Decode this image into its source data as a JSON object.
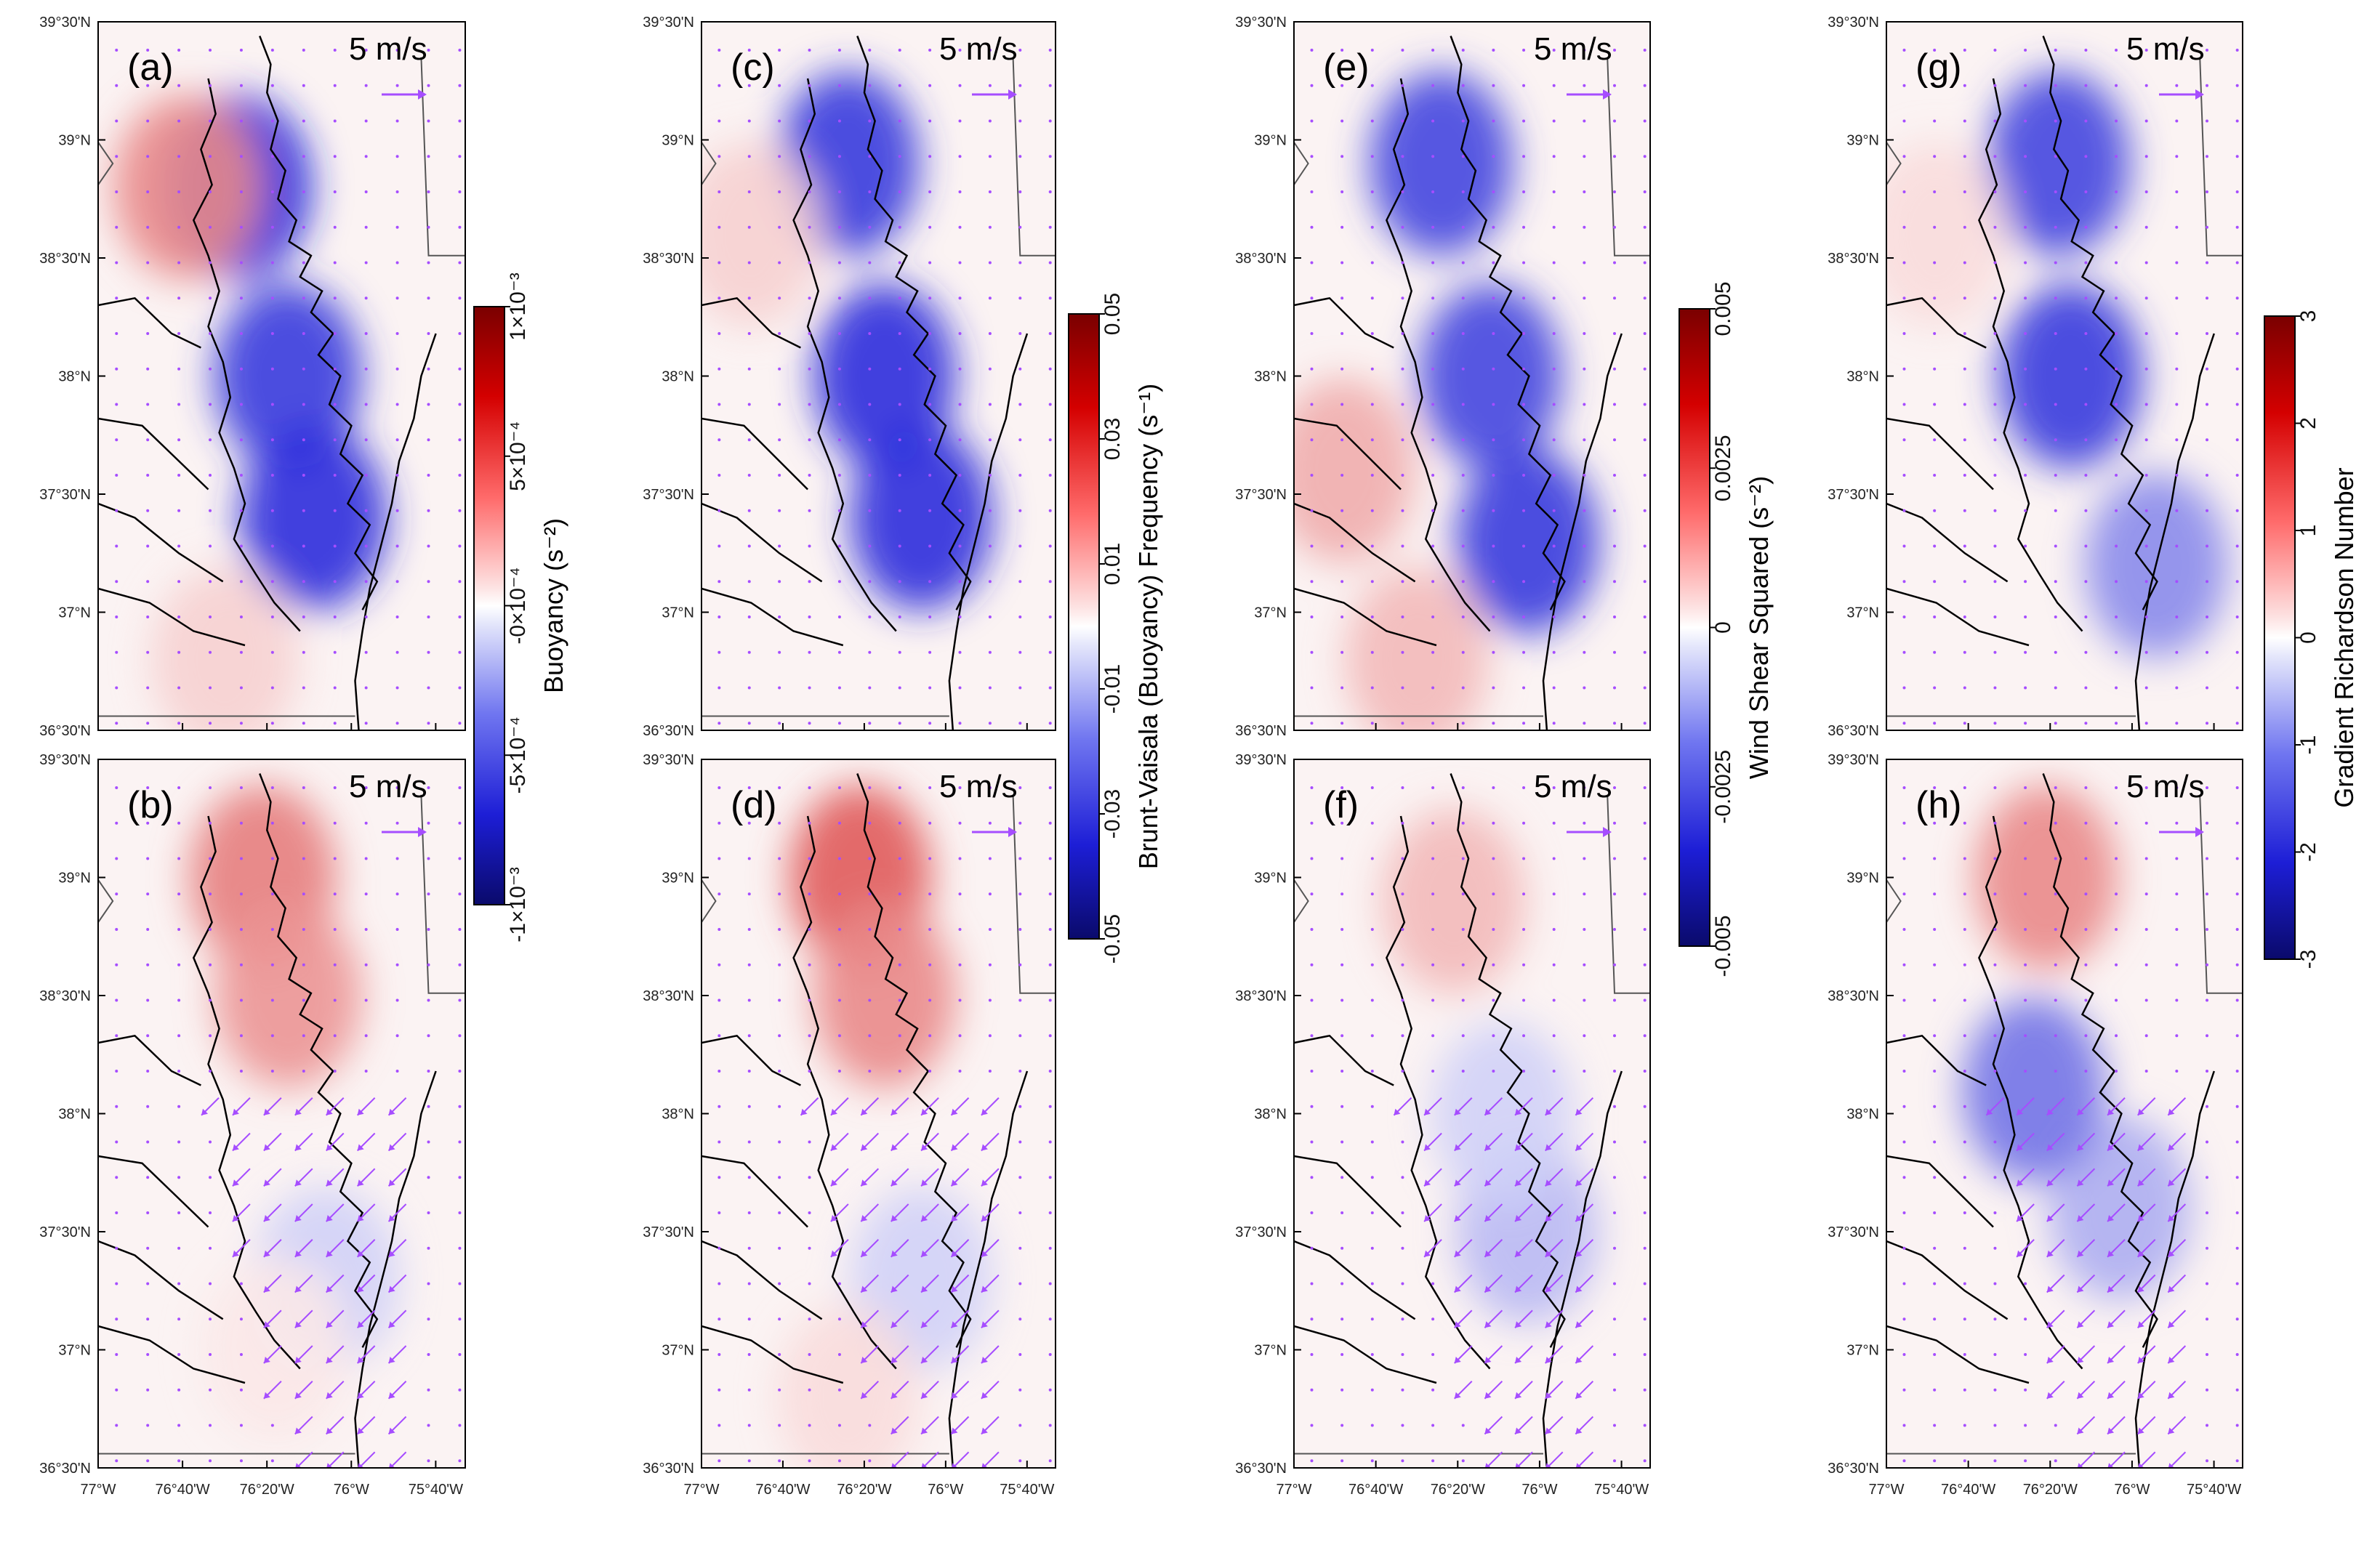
{
  "figure": {
    "lat_labels": [
      "39°30'N",
      "39°N",
      "38°30'N",
      "38°N",
      "37°30'N",
      "37°N",
      "36°30'N"
    ],
    "lon_labels": [
      "77°W",
      "76°40'W",
      "76°20'W",
      "76°W",
      "75°40'W"
    ],
    "reference_vector": "5 m/s",
    "colors": {
      "vector": "#a64dff",
      "coast": "#000000",
      "cmap_high": "#8b0000",
      "cmap_low": "#0a0a6b"
    },
    "icons": [
      "wind-vector-arrow",
      "reference-arrow-icon"
    ]
  },
  "panels": [
    {
      "label": "(a)",
      "field": "buoyancy",
      "scenario": "top",
      "features": [
        {
          "lat": 38.0,
          "lon": -76.25,
          "value": -0.85
        },
        {
          "lat": 37.4,
          "lon": -76.15,
          "value": -0.9
        },
        {
          "lat": 38.8,
          "lon": -76.45,
          "value": -0.95
        },
        {
          "lat": 38.8,
          "lon": -76.65,
          "value": 0.5
        },
        {
          "lat": 36.8,
          "lon": -76.5,
          "value": 0.2
        }
      ]
    },
    {
      "label": "(b)",
      "field": "buoyancy",
      "scenario": "bottom",
      "features": [
        {
          "lat": 39.0,
          "lon": -76.35,
          "value": 0.55
        },
        {
          "lat": 38.5,
          "lon": -76.25,
          "value": 0.45
        },
        {
          "lat": 37.3,
          "lon": -76.1,
          "value": -0.2
        },
        {
          "lat": 37.0,
          "lon": -76.3,
          "value": 0.1
        }
      ]
    },
    {
      "label": "(c)",
      "field": "brunt_vaisala",
      "scenario": "top",
      "features": [
        {
          "lat": 38.0,
          "lon": -76.25,
          "value": -0.9
        },
        {
          "lat": 37.4,
          "lon": -76.1,
          "value": -0.9
        },
        {
          "lat": 38.9,
          "lon": -76.4,
          "value": -0.85
        },
        {
          "lat": 38.6,
          "lon": -76.8,
          "value": 0.2
        }
      ]
    },
    {
      "label": "(d)",
      "field": "brunt_vaisala",
      "scenario": "bottom",
      "features": [
        {
          "lat": 39.0,
          "lon": -76.35,
          "value": 0.7
        },
        {
          "lat": 38.5,
          "lon": -76.25,
          "value": 0.5
        },
        {
          "lat": 37.3,
          "lon": -76.1,
          "value": -0.2
        },
        {
          "lat": 36.8,
          "lon": -76.4,
          "value": 0.15
        }
      ]
    },
    {
      "label": "(e)",
      "field": "wind_shear_squared",
      "scenario": "top",
      "features": [
        {
          "lat": 38.0,
          "lon": -76.2,
          "value": -0.8
        },
        {
          "lat": 37.3,
          "lon": -76.05,
          "value": -0.85
        },
        {
          "lat": 38.9,
          "lon": -76.4,
          "value": -0.8
        },
        {
          "lat": 37.6,
          "lon": -76.8,
          "value": 0.35
        },
        {
          "lat": 36.8,
          "lon": -76.5,
          "value": 0.3
        }
      ]
    },
    {
      "label": "(f)",
      "field": "wind_shear_squared",
      "scenario": "bottom",
      "features": [
        {
          "lat": 38.9,
          "lon": -76.35,
          "value": 0.3
        },
        {
          "lat": 37.5,
          "lon": -76.05,
          "value": -0.3
        },
        {
          "lat": 38.0,
          "lon": -76.15,
          "value": -0.2
        }
      ]
    },
    {
      "label": "(g)",
      "field": "gradient_richardson",
      "scenario": "top",
      "features": [
        {
          "lat": 38.0,
          "lon": -76.25,
          "value": -0.85
        },
        {
          "lat": 38.9,
          "lon": -76.3,
          "value": -0.8
        },
        {
          "lat": 37.2,
          "lon": -75.9,
          "value": -0.5
        },
        {
          "lat": 38.6,
          "lon": -76.8,
          "value": 0.15
        }
      ]
    },
    {
      "label": "(h)",
      "field": "gradient_richardson",
      "scenario": "bottom",
      "features": [
        {
          "lat": 39.0,
          "lon": -76.35,
          "value": 0.5
        },
        {
          "lat": 37.6,
          "lon": -76.05,
          "value": -0.35
        },
        {
          "lat": 38.1,
          "lon": -76.4,
          "value": -0.6
        }
      ]
    }
  ],
  "colorbars": [
    {
      "title": "Buoyancy (s⁻²)",
      "ticks": [
        "1×10⁻³",
        "5×10⁻⁴",
        "-0×10⁻⁴",
        "-5×10⁻⁴",
        "-1×10⁻³"
      ]
    },
    {
      "title": "Brunt-Vaisala (Buoyancy) Frequency (s⁻¹)",
      "ticks": [
        "0.05",
        "0.03",
        "0.01",
        "-0.01",
        "-0.03",
        "-0.05"
      ]
    },
    {
      "title": "Wind Shear Squared (s⁻²)",
      "ticks": [
        "0.005",
        "0.0025",
        "0",
        "-0.0025",
        "-0.005"
      ]
    },
    {
      "title": "Gradient Richardson Number",
      "ticks": [
        "3",
        "2",
        "1",
        "0",
        "-1",
        "-2",
        "-3"
      ]
    }
  ]
}
